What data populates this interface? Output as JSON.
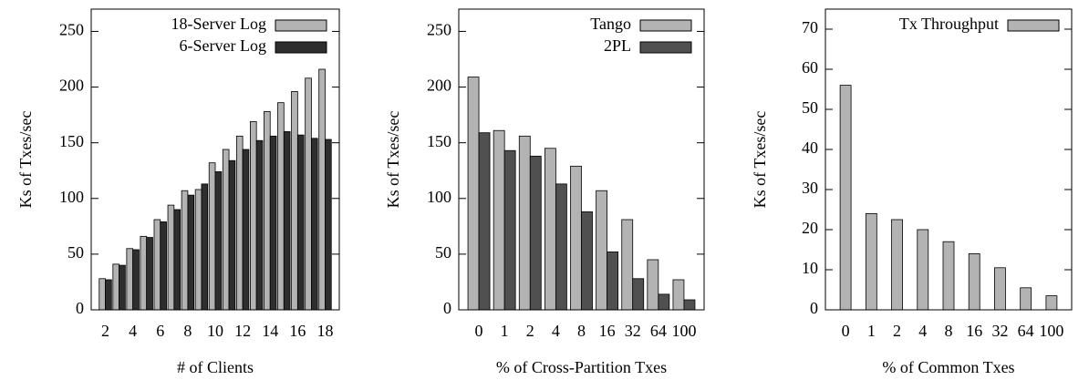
{
  "chart_data": [
    {
      "type": "bar",
      "x_label": "# of Clients",
      "y_label": "Ks of Txes/sec",
      "categories": [
        "2",
        null,
        "4",
        null,
        "6",
        null,
        "8",
        null,
        "10",
        null,
        "12",
        null,
        "14",
        null,
        "16",
        null,
        "18"
      ],
      "series": [
        {
          "name": "18-Server Log",
          "color": "#b3b3b3",
          "values": [
            28,
            41,
            55,
            66,
            81,
            94,
            107,
            108,
            132,
            144,
            156,
            169,
            178,
            186,
            196,
            208,
            216
          ]
        },
        {
          "name": "6-Server Log",
          "color": "#2e2e2e",
          "values": [
            27,
            40,
            54,
            65,
            79,
            90,
            103,
            113,
            124,
            134,
            144,
            152,
            156,
            160,
            157,
            154,
            153
          ]
        }
      ],
      "ylim": [
        0,
        270
      ],
      "yticks": [
        0,
        50,
        100,
        150,
        200,
        250
      ],
      "legend": "top-right"
    },
    {
      "type": "bar",
      "x_label": "% of Cross-Partition Txes",
      "y_label": "Ks of Txes/sec",
      "categories": [
        "0",
        "1",
        "2",
        "4",
        "8",
        "16",
        "32",
        "64",
        "100"
      ],
      "series": [
        {
          "name": "Tango",
          "color": "#b3b3b3",
          "values": [
            209,
            161,
            156,
            145,
            129,
            107,
            81,
            45,
            27
          ]
        },
        {
          "name": "2PL",
          "color": "#505050",
          "values": [
            159,
            143,
            138,
            113,
            88,
            52,
            28,
            14,
            9
          ]
        }
      ],
      "ylim": [
        0,
        270
      ],
      "yticks": [
        0,
        50,
        100,
        150,
        200,
        250
      ],
      "legend": "top-right"
    },
    {
      "type": "bar",
      "x_label": "% of Common Txes",
      "y_label": "Ks of Txes/sec",
      "categories": [
        "0",
        "1",
        "2",
        "4",
        "8",
        "16",
        "32",
        "64",
        "100"
      ],
      "series": [
        {
          "name": "Tx Throughput",
          "color": "#b3b3b3",
          "values": [
            56,
            24,
            22.5,
            20,
            17,
            14,
            10.5,
            5.5,
            3.5
          ]
        }
      ],
      "ylim": [
        0,
        75
      ],
      "yticks": [
        0,
        10,
        20,
        30,
        40,
        50,
        60,
        70
      ],
      "legend": "top-right"
    }
  ]
}
